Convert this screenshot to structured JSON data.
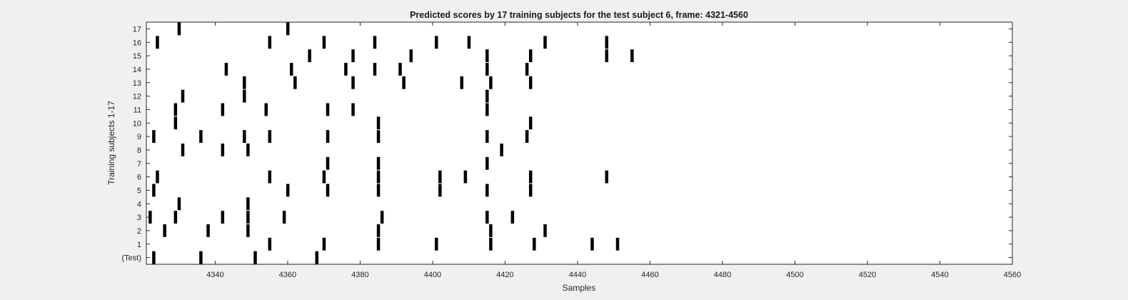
{
  "chart_data": {
    "type": "scatter",
    "title": "Predicted scores by 17 training subjects for the test subject 6, frame: 4321-4560",
    "xlabel": "Samples",
    "ylabel": "Training subjects 1-17",
    "xlim": [
      4321,
      4560
    ],
    "x_ticks": [
      4340,
      4360,
      4380,
      4400,
      4420,
      4440,
      4460,
      4480,
      4500,
      4520,
      4540,
      4560
    ],
    "y_tick_labels": [
      "(Test)",
      "1",
      "2",
      "3",
      "4",
      "5",
      "6",
      "7",
      "8",
      "9",
      "10",
      "11",
      "12",
      "13",
      "14",
      "15",
      "16",
      "17"
    ],
    "grid": false,
    "mark_color": "#000000",
    "rows": [
      {
        "label": "(Test)",
        "x": [
          4323,
          4336,
          4351,
          4368
        ]
      },
      {
        "label": "1",
        "x": [
          4355,
          4370,
          4385,
          4401,
          4416,
          4428,
          4444,
          4451
        ]
      },
      {
        "label": "2",
        "x": [
          4326,
          4338,
          4349,
          4385,
          4416,
          4431
        ]
      },
      {
        "label": "3",
        "x": [
          4322,
          4329,
          4342,
          4349,
          4359,
          4386,
          4415,
          4422
        ]
      },
      {
        "label": "4",
        "x": [
          4330,
          4349
        ]
      },
      {
        "label": "5",
        "x": [
          4323,
          4360,
          4371,
          4385,
          4402,
          4415,
          4427
        ]
      },
      {
        "label": "6",
        "x": [
          4324,
          4355,
          4370,
          4385,
          4402,
          4409,
          4427,
          4448
        ]
      },
      {
        "label": "7",
        "x": [
          4371,
          4385,
          4415
        ]
      },
      {
        "label": "8",
        "x": [
          4331,
          4342,
          4349,
          4419
        ]
      },
      {
        "label": "9",
        "x": [
          4323,
          4336,
          4348,
          4355,
          4371,
          4385,
          4415,
          4426
        ]
      },
      {
        "label": "10",
        "x": [
          4329,
          4385,
          4427
        ]
      },
      {
        "label": "11",
        "x": [
          4329,
          4342,
          4354,
          4371,
          4378,
          4415
        ]
      },
      {
        "label": "12",
        "x": [
          4331,
          4348,
          4415
        ]
      },
      {
        "label": "13",
        "x": [
          4348,
          4362,
          4378,
          4392,
          4408,
          4416,
          4427
        ]
      },
      {
        "label": "14",
        "x": [
          4343,
          4361,
          4376,
          4384,
          4391,
          4415,
          4426
        ]
      },
      {
        "label": "15",
        "x": [
          4366,
          4378,
          4394,
          4415,
          4427,
          4448,
          4455
        ]
      },
      {
        "label": "16",
        "x": [
          4324,
          4355,
          4370,
          4384,
          4401,
          4410,
          4431,
          4448
        ]
      },
      {
        "label": "17",
        "x": [
          4330,
          4360
        ]
      }
    ]
  }
}
